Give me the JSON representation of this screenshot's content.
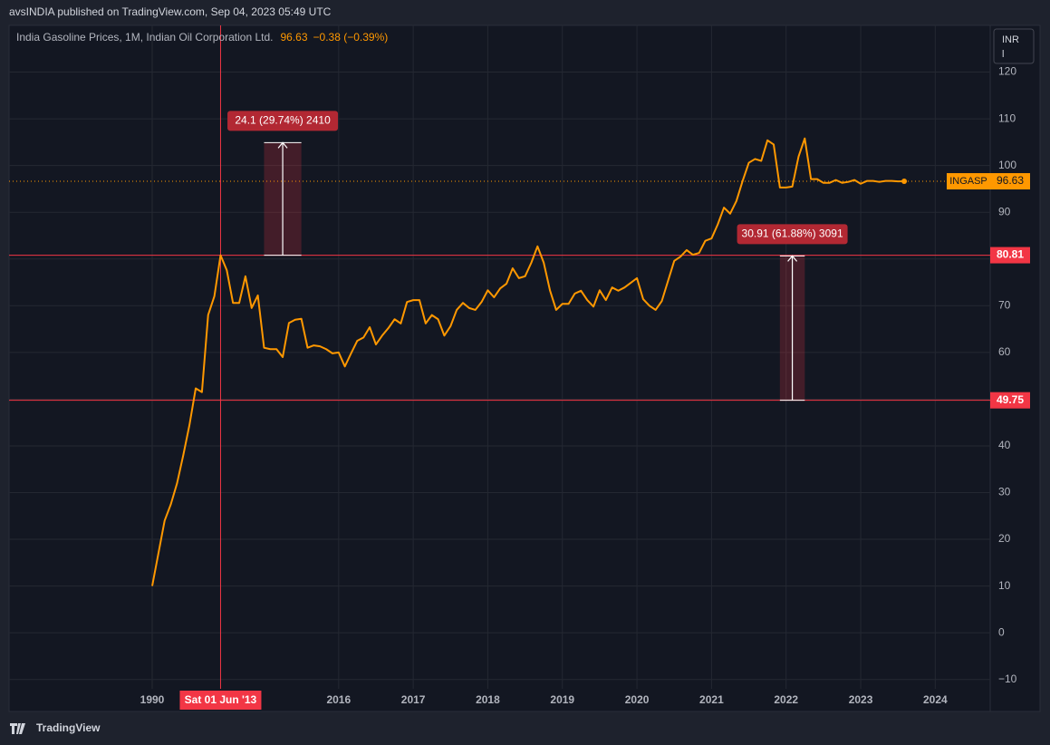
{
  "chart_data": {
    "type": "line",
    "publisher": "avsINDIA published on TradingView.com, Sep 04, 2023 05:49 UTC",
    "title": "India Gasoline Prices, 1M, Indian Oil Corporation Ltd.",
    "change": "−0.38 (−0.39%)",
    "currency": [
      "INR",
      "l"
    ],
    "symbol": "INGASP",
    "brand": "TradingView",
    "categories": [
      "1990",
      null,
      null,
      null,
      null,
      null,
      null,
      null,
      null,
      null,
      null,
      "Sat 01 Jun '13",
      null,
      null,
      null,
      null,
      null,
      null,
      null,
      null,
      null,
      null,
      null,
      null,
      null,
      null,
      null,
      null,
      null,
      null,
      "2016",
      null,
      null,
      null,
      null,
      null,
      null,
      null,
      null,
      null,
      null,
      null,
      "2017",
      null,
      null,
      null,
      null,
      null,
      null,
      null,
      null,
      null,
      null,
      null,
      "2018",
      null,
      null,
      null,
      null,
      null,
      null,
      null,
      null,
      null,
      null,
      null,
      "2019",
      null,
      null,
      null,
      null,
      null,
      null,
      null,
      null,
      null,
      null,
      null,
      "2020",
      null,
      null,
      null,
      null,
      null,
      null,
      null,
      null,
      null,
      null,
      null,
      "2021",
      null,
      null,
      null,
      null,
      null,
      null,
      null,
      null,
      null,
      null,
      null,
      "2022",
      null,
      null,
      null,
      null,
      null,
      null,
      null,
      null,
      null,
      null,
      null,
      "2023",
      null,
      null,
      null,
      null,
      null,
      null,
      null,
      null,
      null,
      null,
      null,
      "2024"
    ],
    "crosshair_category": 11,
    "series": [
      {
        "color": "#ff9800",
        "values": [
          10,
          17,
          24,
          27.5,
          32,
          38,
          44.5,
          52.3,
          51.5,
          68,
          72,
          80.8,
          77.6,
          70.6,
          70.6,
          76.3,
          69.5,
          72.2,
          61,
          60.7,
          60.7,
          59,
          66.3,
          67,
          67.2,
          61,
          61.5,
          61.3,
          60.7,
          59.8,
          60,
          57,
          59.8,
          62.5,
          63.2,
          65.4,
          61.7,
          63.6,
          65.2,
          67.1,
          66.2,
          70.8,
          71.2,
          71.2,
          66.2,
          68,
          67.1,
          63.6,
          65.6,
          69.1,
          70.6,
          69.5,
          69.1,
          70.8,
          73.3,
          71.8,
          73.7,
          74.7,
          78,
          75.9,
          76.3,
          79.2,
          82.7,
          79.2,
          73.3,
          69.1,
          70.4,
          70.4,
          72.6,
          73.2,
          71.2,
          69.8,
          73.3,
          71.2,
          73.9,
          73.2,
          73.9,
          74.9,
          75.9,
          71.4,
          70,
          69.1,
          71,
          75.3,
          79.6,
          80.5,
          81.9,
          80.9,
          81.3,
          83.9,
          84.4,
          87.4,
          91,
          89.7,
          92.4,
          96.7,
          100.6,
          101.4,
          101,
          105.4,
          104.5,
          95.3,
          95.3,
          95.5,
          101.9,
          105.8,
          97.1,
          97.1,
          96.3,
          96.3,
          96.9,
          96.3,
          96.5,
          96.9,
          96.1,
          96.7,
          96.7,
          96.5,
          96.7,
          96.7,
          96.6,
          96.63,
          null,
          null,
          null,
          null,
          null
        ]
      }
    ],
    "ylim": [
      -12,
      130
    ],
    "yticks": [
      {
        "value": -10,
        "label": "−10"
      },
      0,
      10,
      20,
      30,
      40,
      50,
      60,
      70,
      80,
      90,
      100,
      110,
      120
    ],
    "grid": true,
    "hlines": [
      80.81,
      49.75
    ],
    "measurements": [
      {
        "label": "24.1 (29.74%) 2410",
        "from": 80.81,
        "to": 104.91,
        "x": [
          18,
          24
        ]
      },
      {
        "label": "30.91 (61.88%) 3091",
        "from": 49.75,
        "to": 80.66,
        "x": [
          101,
          105
        ]
      }
    ]
  }
}
